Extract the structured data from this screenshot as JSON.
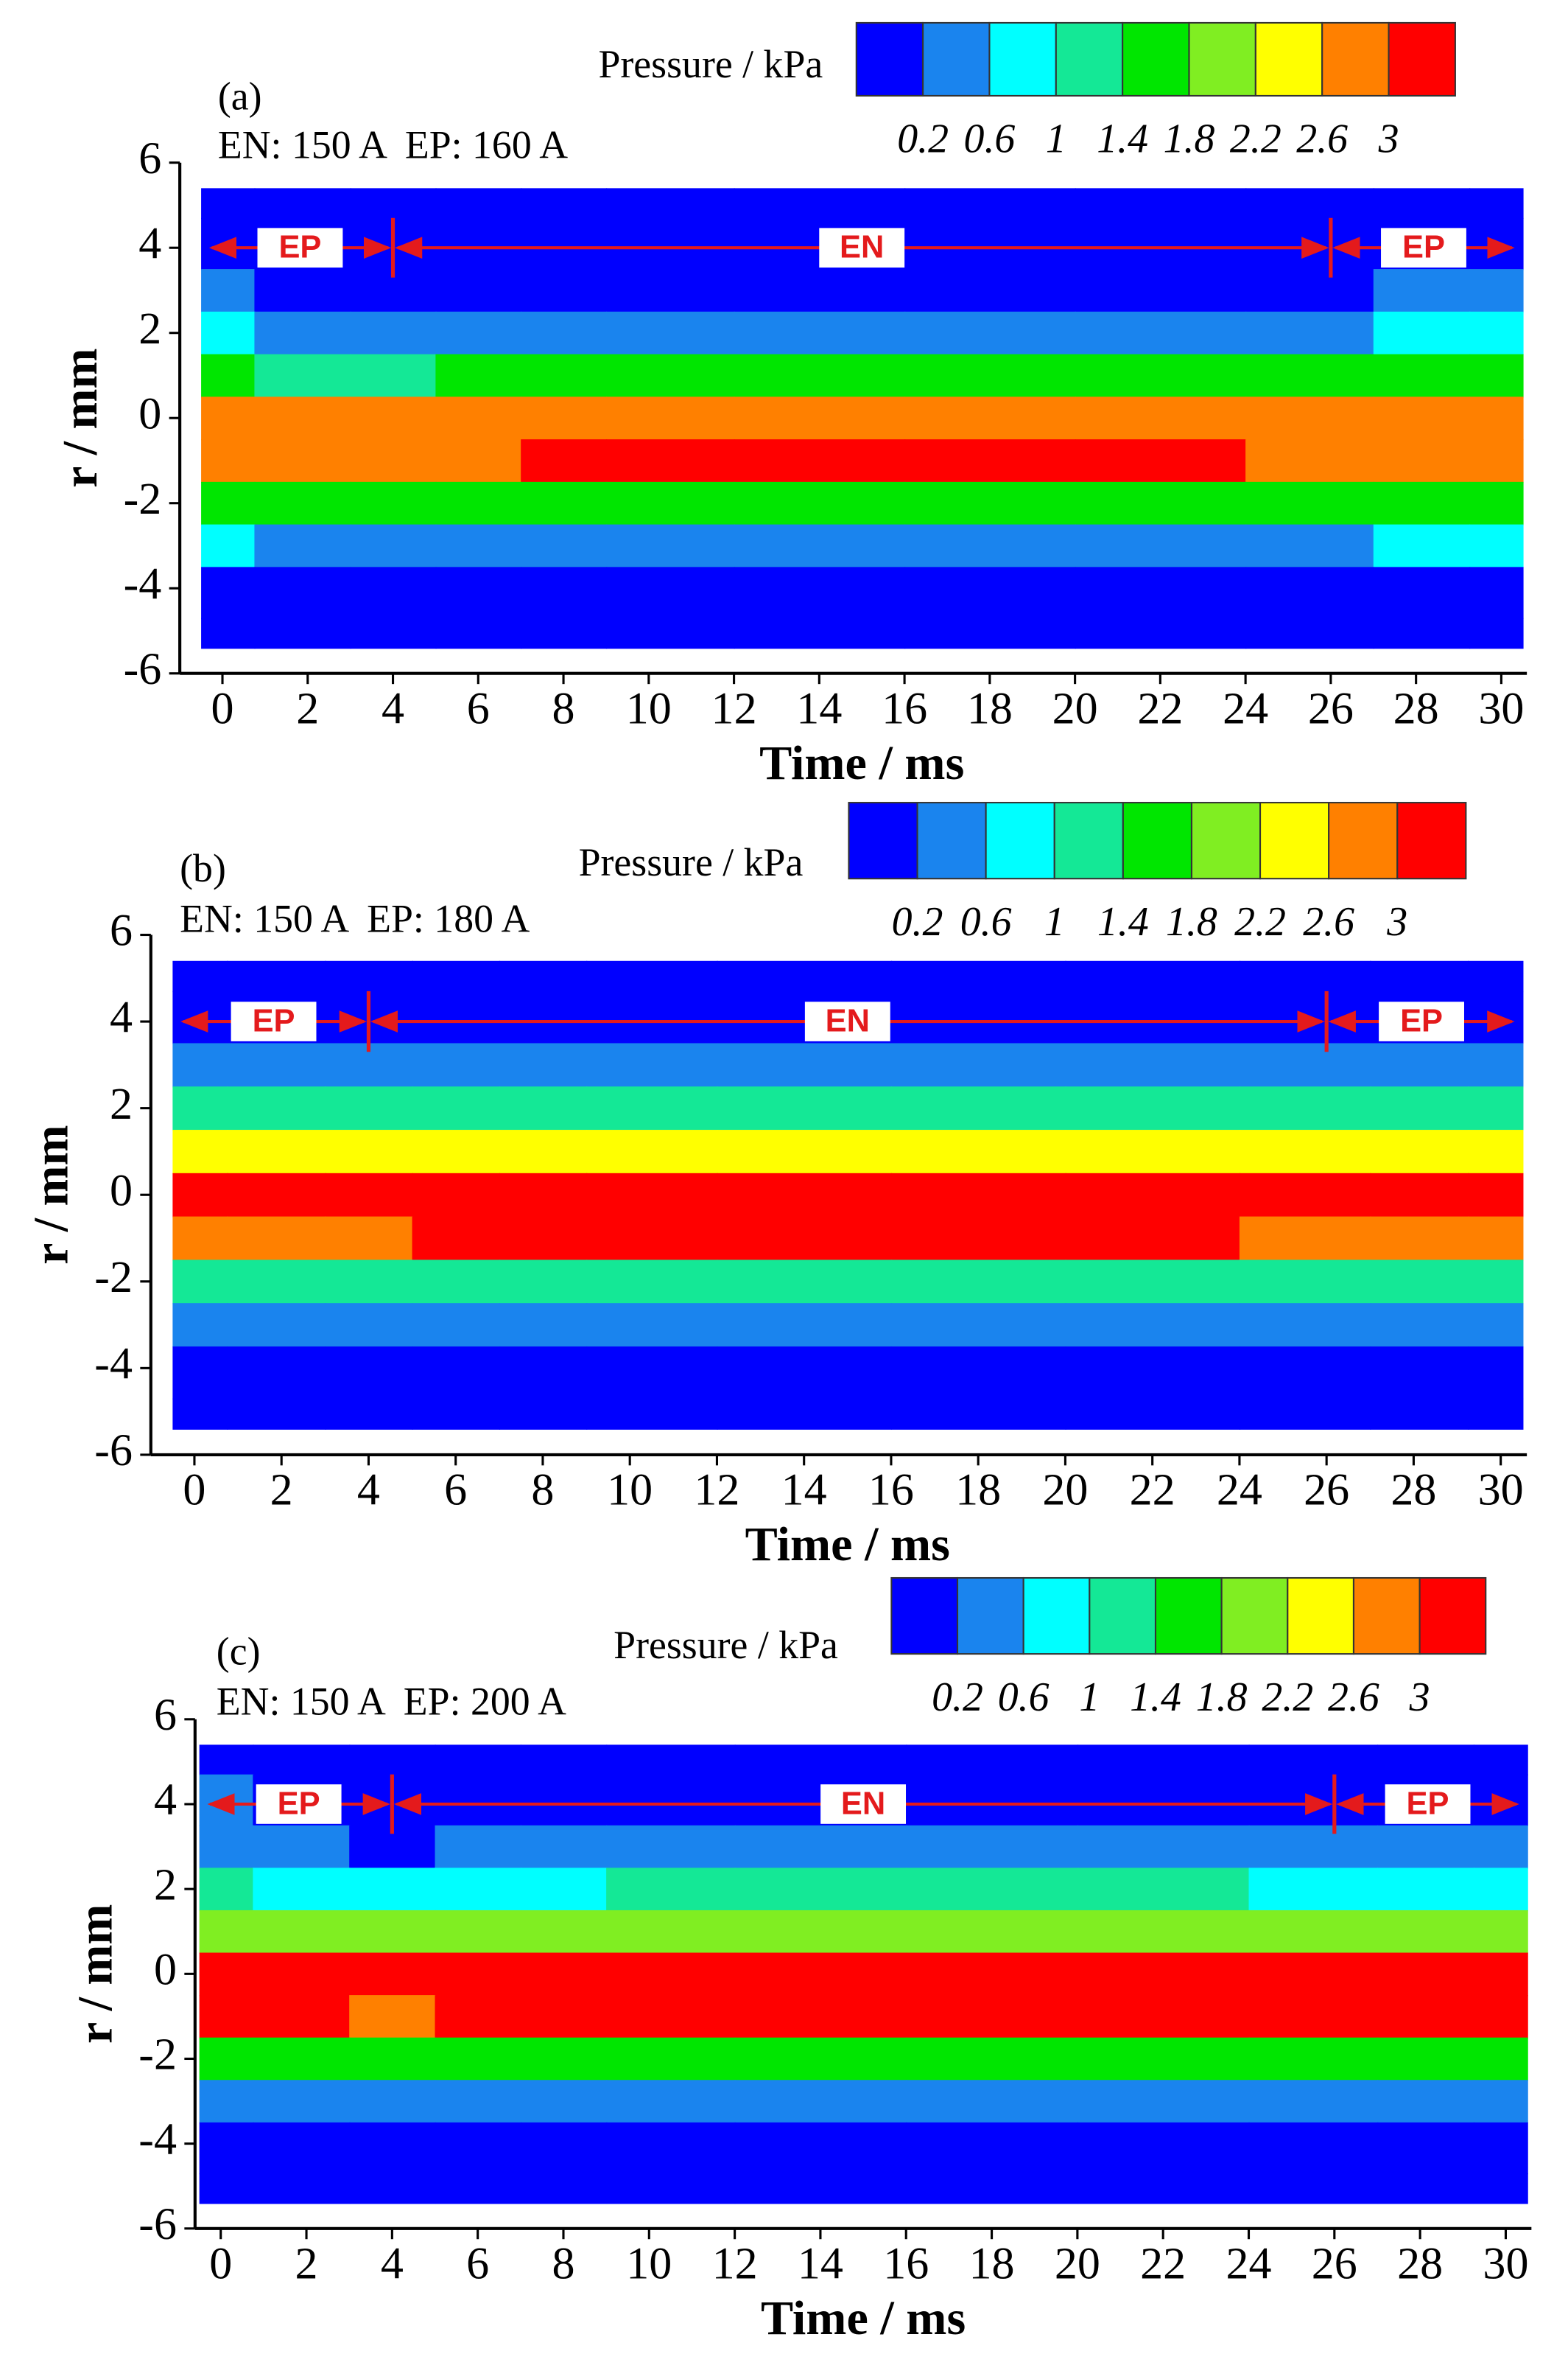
{
  "chart_data": [
    {
      "type": "heatmap",
      "label": "(a)",
      "subtitle": "EN: 150 A  EP: 160 A",
      "xlabel": "Time / ms",
      "ylabel": "r / mm",
      "xlim": [
        -1,
        30.6
      ],
      "ylim": [
        -6,
        6
      ],
      "xticks": [
        0,
        2,
        4,
        6,
        8,
        10,
        12,
        14,
        16,
        18,
        20,
        22,
        24,
        26,
        28,
        30
      ],
      "yticks": [
        -6,
        -4,
        -2,
        0,
        2,
        4,
        6
      ],
      "colorbar": {
        "label": "Pressure / kPa",
        "levels": [
          0.2,
          0.6,
          1,
          1.4,
          1.8,
          2.2,
          2.6,
          3
        ],
        "colors": [
          "#0000ff",
          "#1a84ee",
          "#00ffff",
          "#14e896",
          "#00e600",
          "#80ee22",
          "#ffff00",
          "#ff8000",
          "#ff0000"
        ]
      },
      "phase_labels": [
        "EP",
        "EN",
        "EP"
      ],
      "phase_boundaries": [
        4,
        26
      ],
      "x": [
        -0.5,
        2,
        4,
        6,
        8,
        10,
        14,
        18,
        22,
        26,
        28,
        30.5
      ],
      "y": [
        5.4,
        4,
        3,
        2,
        1,
        0,
        -1,
        -2,
        -3,
        -4,
        -5.4
      ],
      "z": [
        [
          0.05,
          0.05,
          0.05,
          0.05,
          0.05,
          0.05,
          0.05,
          0.05,
          0.05,
          0.05,
          0.05,
          0.05
        ],
        [
          0.1,
          0.1,
          0.1,
          0.1,
          0.1,
          0.1,
          0.1,
          0.1,
          0.1,
          0.1,
          0.1,
          0.1
        ],
        [
          0.3,
          0.15,
          0.15,
          0.15,
          0.1,
          0.1,
          0.1,
          0.1,
          0.1,
          0.15,
          0.3,
          0.3
        ],
        [
          0.7,
          0.5,
          0.4,
          0.5,
          0.5,
          0.5,
          0.5,
          0.5,
          0.5,
          0.5,
          0.7,
          0.7
        ],
        [
          1.5,
          1.3,
          1.2,
          1.4,
          1.5,
          1.6,
          1.6,
          1.6,
          1.6,
          1.5,
          1.5,
          1.5
        ],
        [
          2.8,
          2.7,
          2.6,
          2.7,
          2.7,
          2.8,
          2.8,
          2.8,
          2.8,
          2.7,
          2.7,
          2.7
        ],
        [
          2.8,
          2.7,
          2.7,
          2.8,
          3.05,
          3.1,
          3.1,
          3.1,
          3.1,
          2.8,
          2.8,
          2.8
        ],
        [
          1.7,
          1.5,
          1.5,
          1.6,
          1.7,
          1.7,
          1.7,
          1.7,
          1.7,
          1.6,
          1.6,
          1.6
        ],
        [
          0.6,
          0.5,
          0.5,
          0.5,
          0.5,
          0.5,
          0.5,
          0.5,
          0.5,
          0.5,
          0.6,
          0.6
        ],
        [
          0.15,
          0.15,
          0.1,
          0.1,
          0.1,
          0.1,
          0.1,
          0.1,
          0.1,
          0.1,
          0.15,
          0.15
        ],
        [
          0.05,
          0.05,
          0.05,
          0.05,
          0.05,
          0.05,
          0.05,
          0.05,
          0.05,
          0.05,
          0.05,
          0.05
        ]
      ]
    },
    {
      "type": "heatmap",
      "label": "(b)",
      "subtitle": "EN: 150 A  EP: 180 A",
      "xlabel": "Time / ms",
      "ylabel": "r / mm",
      "xlim": [
        -1,
        30.6
      ],
      "ylim": [
        -6,
        6
      ],
      "xticks": [
        0,
        2,
        4,
        6,
        8,
        10,
        12,
        14,
        16,
        18,
        20,
        22,
        24,
        26,
        28,
        30
      ],
      "yticks": [
        -6,
        -4,
        -2,
        0,
        2,
        4,
        6
      ],
      "colorbar": {
        "label": "Pressure / kPa",
        "levels": [
          0.2,
          0.6,
          1,
          1.4,
          1.8,
          2.2,
          2.6,
          3
        ],
        "colors": [
          "#0000ff",
          "#1a84ee",
          "#00ffff",
          "#14e896",
          "#00e600",
          "#80ee22",
          "#ffff00",
          "#ff8000",
          "#ff0000"
        ]
      },
      "phase_labels": [
        "EP",
        "EN",
        "EP"
      ],
      "phase_boundaries": [
        4,
        26
      ],
      "x": [
        -0.5,
        2,
        4,
        6,
        8,
        10,
        14,
        18,
        22,
        26,
        28,
        30.5
      ],
      "y": [
        5.4,
        4,
        3,
        2,
        1,
        0,
        -1,
        -2,
        -3,
        -4,
        -5.4
      ],
      "z": [
        [
          0.05,
          0.05,
          0.05,
          0.05,
          0.05,
          0.05,
          0.05,
          0.05,
          0.05,
          0.05,
          0.05,
          0.05
        ],
        [
          0.15,
          0.1,
          0.1,
          0.1,
          0.1,
          0.1,
          0.1,
          0.1,
          0.1,
          0.1,
          0.1,
          0.1
        ],
        [
          0.5,
          0.4,
          0.4,
          0.5,
          0.5,
          0.5,
          0.5,
          0.5,
          0.5,
          0.5,
          0.5,
          0.5
        ],
        [
          1.2,
          1.1,
          1.0,
          1.1,
          1.2,
          1.2,
          1.2,
          1.2,
          1.2,
          1.2,
          1.2,
          1.2
        ],
        [
          2.3,
          2.4,
          2.2,
          2.3,
          2.4,
          2.4,
          2.4,
          2.4,
          2.4,
          2.3,
          2.4,
          2.3
        ],
        [
          3.1,
          3.1,
          3.1,
          3.1,
          3.1,
          3.1,
          3.1,
          3.1,
          3.1,
          3.1,
          3.1,
          3.1
        ],
        [
          2.9,
          2.9,
          2.7,
          3.0,
          3.05,
          3.1,
          3.1,
          3.1,
          3.1,
          2.9,
          2.9,
          2.9
        ],
        [
          1.3,
          1.2,
          1.1,
          1.2,
          1.3,
          1.3,
          1.3,
          1.3,
          1.3,
          1.2,
          1.2,
          1.2
        ],
        [
          0.4,
          0.4,
          0.4,
          0.4,
          0.4,
          0.4,
          0.4,
          0.4,
          0.4,
          0.4,
          0.4,
          0.4
        ],
        [
          0.1,
          0.1,
          0.1,
          0.1,
          0.1,
          0.1,
          0.1,
          0.1,
          0.1,
          0.1,
          0.1,
          0.1
        ],
        [
          0.05,
          0.05,
          0.05,
          0.05,
          0.05,
          0.05,
          0.05,
          0.05,
          0.05,
          0.05,
          0.05,
          0.05
        ]
      ]
    },
    {
      "type": "heatmap",
      "label": "(c)",
      "subtitle": "EN: 150 A  EP: 200 A",
      "xlabel": "Time / ms",
      "ylabel": "r / mm",
      "xlim": [
        -0.6,
        30.6
      ],
      "ylim": [
        -6,
        6
      ],
      "xticks": [
        0,
        2,
        4,
        6,
        8,
        10,
        12,
        14,
        16,
        18,
        20,
        22,
        24,
        26,
        28,
        30
      ],
      "yticks": [
        -6,
        -4,
        -2,
        0,
        2,
        4,
        6
      ],
      "colorbar": {
        "label": "Pressure / kPa",
        "levels": [
          0.2,
          0.6,
          1,
          1.4,
          1.8,
          2.2,
          2.6,
          3
        ],
        "colors": [
          "#0000ff",
          "#1a84ee",
          "#00ffff",
          "#14e896",
          "#00e600",
          "#80ee22",
          "#ffff00",
          "#ff8000",
          "#ff0000"
        ]
      },
      "phase_labels": [
        "EP",
        "EN",
        "EP"
      ],
      "phase_boundaries": [
        4,
        26
      ],
      "x": [
        -0.5,
        2,
        4,
        6,
        8,
        10,
        14,
        18,
        22,
        26,
        28,
        30.5
      ],
      "y": [
        5.4,
        4,
        3,
        2,
        1,
        0,
        -1,
        -2,
        -3,
        -4,
        -5.4
      ],
      "z": [
        [
          0.05,
          0.05,
          0.05,
          0.05,
          0.05,
          0.05,
          0.05,
          0.05,
          0.05,
          0.05,
          0.05,
          0.05
        ],
        [
          0.3,
          0.1,
          0.1,
          0.1,
          0.1,
          0.1,
          0.1,
          0.1,
          0.1,
          0.1,
          0.1,
          0.1
        ],
        [
          0.4,
          0.2,
          0.15,
          0.2,
          0.3,
          0.4,
          0.4,
          0.4,
          0.4,
          0.3,
          0.2,
          0.3
        ],
        [
          1.0,
          0.8,
          0.7,
          0.8,
          0.9,
          1.0,
          1.0,
          1.0,
          1.0,
          0.9,
          0.8,
          0.9
        ],
        [
          2.0,
          1.9,
          1.8,
          1.9,
          2.0,
          2.0,
          2.0,
          2.0,
          2.0,
          1.9,
          1.9,
          1.9
        ],
        [
          3.1,
          3.1,
          3.1,
          3.1,
          3.1,
          3.1,
          3.1,
          3.1,
          3.1,
          3.1,
          3.1,
          3.1
        ],
        [
          3.05,
          3.05,
          2.8,
          3.1,
          3.1,
          3.1,
          3.1,
          3.1,
          3.1,
          3.05,
          3.05,
          3.05
        ],
        [
          1.6,
          1.4,
          1.4,
          1.5,
          1.5,
          1.5,
          1.5,
          1.5,
          1.5,
          1.5,
          1.5,
          1.5
        ],
        [
          0.5,
          0.5,
          0.5,
          0.5,
          0.5,
          0.5,
          0.5,
          0.5,
          0.5,
          0.5,
          0.5,
          0.5
        ],
        [
          0.1,
          0.1,
          0.1,
          0.1,
          0.1,
          0.1,
          0.1,
          0.1,
          0.1,
          0.1,
          0.1,
          0.1
        ],
        [
          0.05,
          0.05,
          0.05,
          0.05,
          0.05,
          0.05,
          0.05,
          0.05,
          0.05,
          0.05,
          0.05,
          0.05
        ]
      ]
    }
  ]
}
